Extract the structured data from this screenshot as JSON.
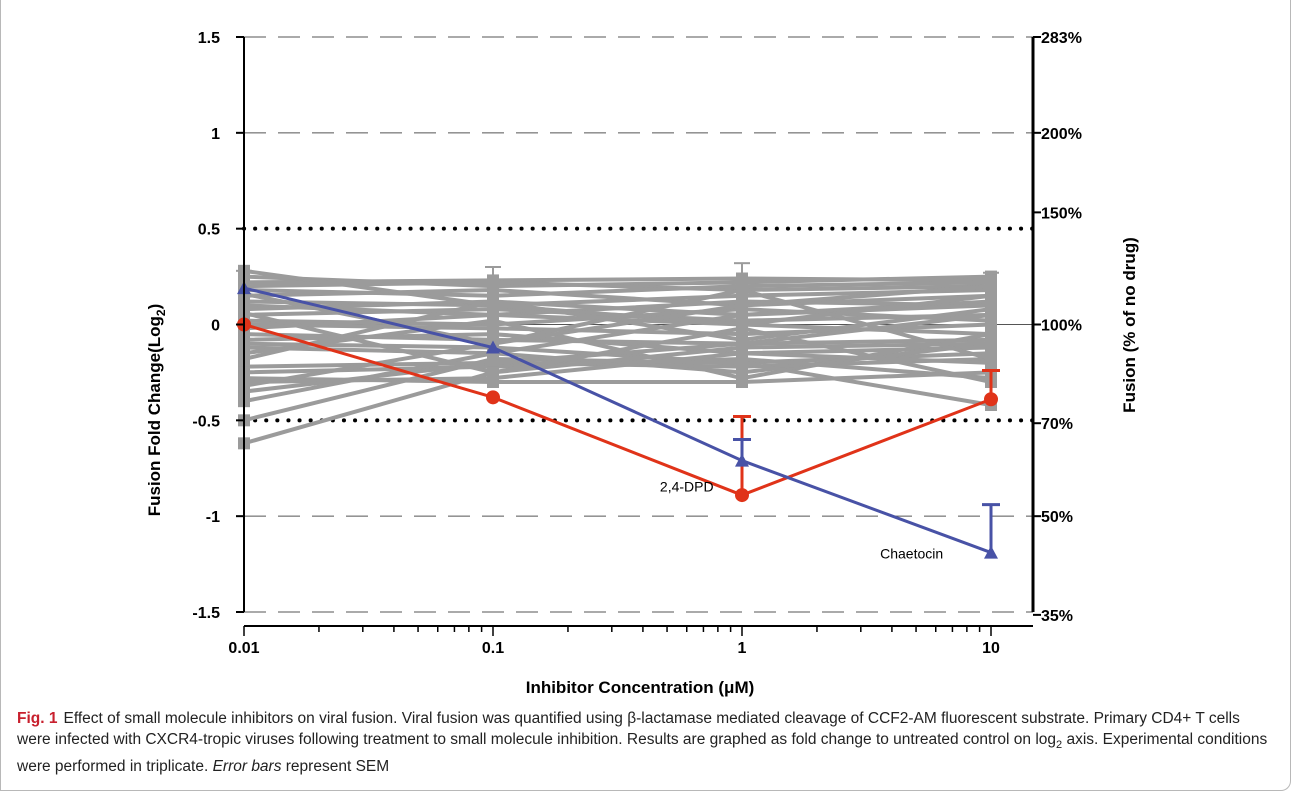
{
  "chart_data": {
    "type": "line",
    "x_scale": "log",
    "xlim": [
      0.01,
      10
    ],
    "ylim": [
      -1.5,
      1.5
    ],
    "x_ticks": [
      "0.01",
      "0.1",
      "1",
      "10"
    ],
    "x_tick_values": [
      0.01,
      0.1,
      1,
      10
    ],
    "y_ticks": [
      "1.5",
      "1",
      "0.5",
      "0",
      "-0.5",
      "-1",
      "-1.5"
    ],
    "y_tick_values": [
      1.5,
      1,
      0.5,
      0,
      -0.5,
      -1,
      -1.5
    ],
    "y2_ticks": [
      "283%",
      "200%",
      "150%",
      "100%",
      "70%",
      "50%",
      "35%"
    ],
    "y2_tick_values": [
      1.5,
      1,
      0.585,
      0,
      -0.515,
      -1,
      -1.515
    ],
    "xlabel_prefix": "Inhibitor Concentration (",
    "xlabel_mu": "μ",
    "xlabel_suffix": "M)",
    "ylabel_main": "Fusion Fold Change(Log",
    "ylabel_sub": "2",
    "ylabel_end": ")",
    "y2label": "Fusion (% of no drug)",
    "threshold_lines": [
      0.5,
      -0.5
    ],
    "dashed_gridlines": [
      1.5,
      1,
      -1,
      -1.5
    ],
    "colors": {
      "gray": "#9b9b9b",
      "red": "#e03319",
      "blue": "#4852a6"
    },
    "series": [
      {
        "name": "2,4-DPD",
        "color": "red",
        "x": [
          0.01,
          0.1,
          1,
          10
        ],
        "y": [
          0.0,
          -0.38,
          -0.89,
          -0.39
        ],
        "err_up": [
          0.0,
          0.0,
          0.41,
          0.0
        ],
        "err_down": [
          0.0,
          0.0,
          0.0,
          0.15
        ]
      },
      {
        "name": "Chaetocin",
        "color": "blue",
        "x": [
          0.01,
          0.1,
          1,
          10
        ],
        "y": [
          0.19,
          -0.12,
          -0.71,
          -1.19
        ],
        "err_up": [
          0.0,
          0.0,
          0.11,
          0.25
        ],
        "err_down": [
          0.0,
          0.0,
          0.0,
          0.0
        ]
      }
    ],
    "gray_series": [
      [
        0.25,
        0.2,
        0.22,
        0.25
      ],
      [
        0.22,
        0.23,
        0.24,
        0.23
      ],
      [
        0.2,
        0.22,
        0.18,
        0.2
      ],
      [
        0.18,
        0.15,
        0.2,
        0.22
      ],
      [
        0.15,
        0.18,
        0.1,
        0.15
      ],
      [
        0.12,
        0.1,
        0.15,
        0.18
      ],
      [
        0.1,
        0.05,
        0.12,
        0.1
      ],
      [
        0.08,
        0.12,
        0.05,
        0.12
      ],
      [
        0.05,
        0.08,
        0.02,
        0.05
      ],
      [
        0.02,
        0.0,
        0.08,
        0.02
      ],
      [
        0.0,
        -0.02,
        -0.05,
        0.0
      ],
      [
        -0.02,
        0.05,
        0.0,
        -0.05
      ],
      [
        -0.05,
        -0.08,
        -0.1,
        -0.08
      ],
      [
        -0.08,
        -0.05,
        -0.15,
        -0.12
      ],
      [
        -0.1,
        -0.12,
        -0.2,
        -0.15
      ],
      [
        -0.12,
        -0.15,
        -0.25,
        -0.1
      ],
      [
        -0.15,
        0.02,
        -0.28,
        -0.05
      ],
      [
        -0.22,
        -0.2,
        -0.22,
        -0.18
      ],
      [
        -0.25,
        -0.22,
        -0.18,
        -0.28
      ],
      [
        -0.28,
        -0.3,
        -0.3,
        -0.25
      ],
      [
        -0.3,
        -0.28,
        -0.15,
        -0.2
      ],
      [
        -0.35,
        -0.2,
        -0.1,
        0.05
      ],
      [
        -0.4,
        -0.15,
        0.05,
        0.1
      ],
      [
        -0.5,
        -0.18,
        -0.2,
        -0.42
      ],
      [
        -0.62,
        -0.25,
        -0.12,
        -0.1
      ],
      [
        0.28,
        0.1,
        0.0,
        0.15
      ],
      [
        0.16,
        -0.1,
        0.18,
        -0.18
      ],
      [
        -0.18,
        0.12,
        -0.08,
        0.08
      ],
      [
        0.06,
        -0.25,
        -0.02,
        -0.3
      ],
      [
        -0.32,
        -0.1,
        0.1,
        0.2
      ]
    ],
    "annotations": [
      {
        "text": "2,4-DPD",
        "x": 0.6,
        "y": -0.87
      },
      {
        "text": "Chaetocin",
        "x": 4.8,
        "y": -1.22
      }
    ]
  },
  "caption": {
    "label": "Fig. 1",
    "title": "Effect of small molecule inhibitors on viral fusion. Viral fusion was quantified using β-lactamase mediated cleavage of CCF2-AM fluorescent substrate. Primary CD4+ T cells were infected with CXCR4-tropic viruses following treatment to small molecule inhibition. Results are graphed as fold change to untreated control on log",
    "log_sub": "2",
    "after_log": " axis. Experimental conditions were performed in triplicate. ",
    "italic": "Error bars",
    "end": " represent SEM"
  }
}
